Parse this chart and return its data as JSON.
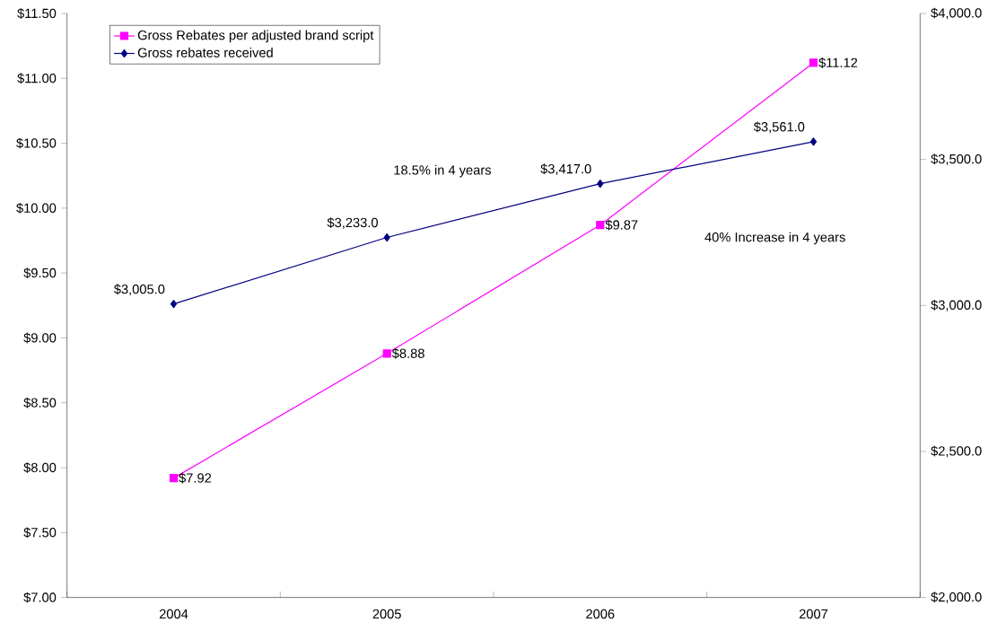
{
  "chart_data": {
    "type": "line",
    "categories": [
      "2004",
      "2005",
      "2006",
      "2007"
    ],
    "series": [
      {
        "name": "Gross Rebates per adjusted brand script",
        "color": "#ff00ff",
        "marker": "square",
        "values": [
          7.92,
          8.88,
          9.87,
          11.12
        ],
        "value_labels": [
          "$7.92",
          "$8.88",
          "$9.87",
          "$11.12"
        ]
      },
      {
        "name": "Gross rebates received",
        "color": "#000080",
        "marker": "diamond",
        "axis": "y2",
        "values": [
          3005,
          3233,
          3417,
          3561
        ],
        "value_labels": [
          "$3,005.0",
          "$3,233.0",
          "$3,417.0",
          "$3,561.0"
        ]
      }
    ],
    "ylim": [
      7,
      11.5
    ],
    "yticks": [
      {
        "value": 7,
        "label": "$7.00"
      },
      {
        "value": 7.5,
        "label": "$7.50"
      },
      {
        "value": 8,
        "label": "$8.00"
      },
      {
        "value": 8.5,
        "label": "$8.50"
      },
      {
        "value": 9,
        "label": "$9.00"
      },
      {
        "value": 9.5,
        "label": "$9.50"
      },
      {
        "value": 10,
        "label": "$10.00"
      },
      {
        "value": 10.5,
        "label": "$10.50"
      },
      {
        "value": 11,
        "label": "$11.00"
      },
      {
        "value": 11.5,
        "label": "$11.50"
      }
    ],
    "y2lim": [
      2000,
      4000
    ],
    "y2ticks": [
      {
        "value": 2000,
        "label": "$2,000.0"
      },
      {
        "value": 2500,
        "label": "$2,500.0"
      },
      {
        "value": 3000,
        "label": "$3,000.0"
      },
      {
        "value": 3500,
        "label": "$3,500.0"
      },
      {
        "value": 4000,
        "label": "$4,000.0"
      }
    ],
    "annotations": [
      "18.5% in 4 years",
      "40% Increase in 4 years"
    ],
    "legend": "top left",
    "grid": false
  }
}
